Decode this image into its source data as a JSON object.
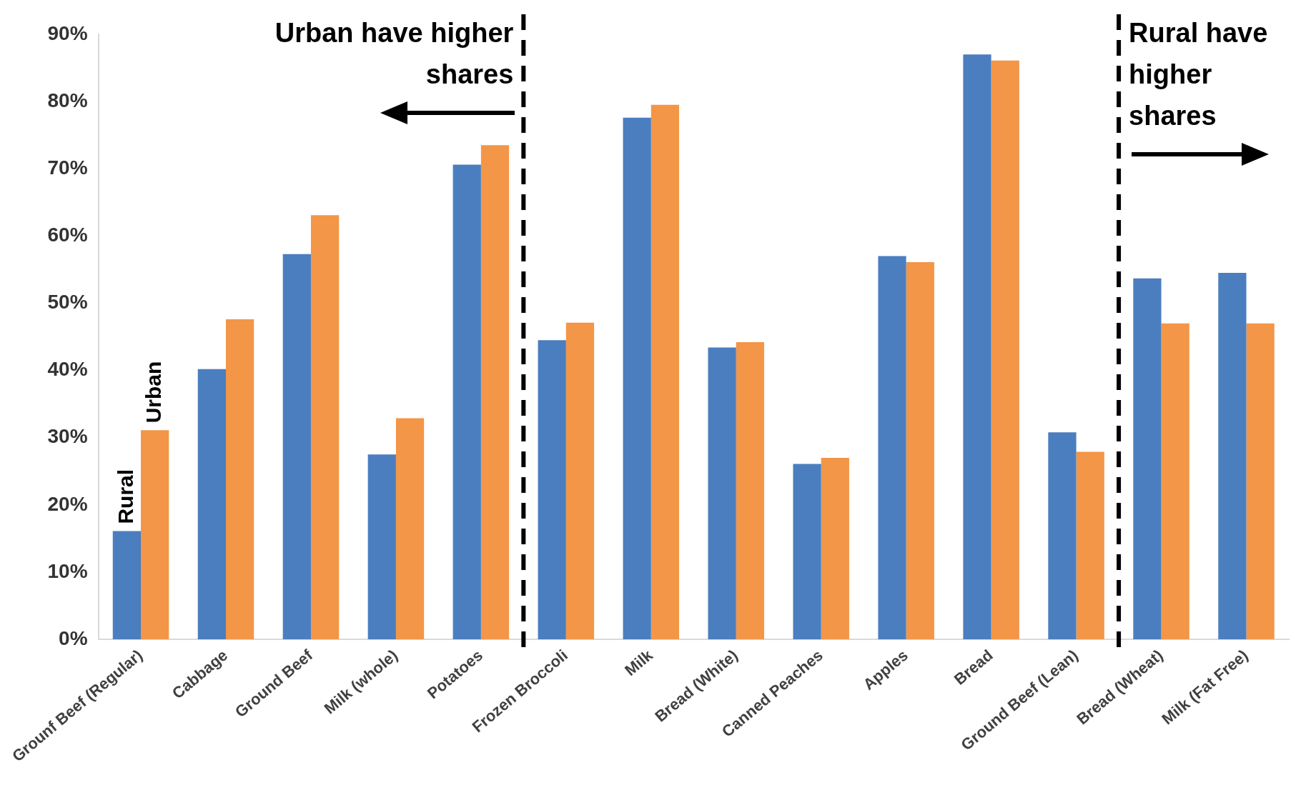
{
  "chart_data": {
    "type": "bar",
    "categories": [
      "Grounf Beef (Regular)",
      "Cabbage",
      "Ground Beef",
      "Milk (whole)",
      "Potatoes",
      "Frozen Broccoli",
      "Milk",
      "Bread (White)",
      "Canned Peaches",
      "Apples",
      "Bread",
      "Ground Beef (Lean)",
      "Bread (Wheat)",
      "Milk (Fat Free)"
    ],
    "series": [
      {
        "name": "Rural",
        "color": "#4a7ebf",
        "values": [
          16.1,
          40.2,
          57.3,
          27.5,
          70.6,
          44.5,
          77.6,
          43.4,
          26.1,
          57.0,
          87.0,
          30.8,
          53.7,
          54.5
        ]
      },
      {
        "name": "Urban",
        "color": "#f39647",
        "values": [
          31.1,
          47.6,
          63.1,
          32.9,
          73.5,
          47.1,
          79.5,
          44.2,
          27.0,
          56.1,
          86.1,
          27.9,
          47.0,
          47.0
        ]
      }
    ],
    "ylim": [
      0,
      90
    ],
    "yticks": [
      {
        "value": 0,
        "label": "0%"
      },
      {
        "value": 10,
        "label": "10%"
      },
      {
        "value": 20,
        "label": "20%"
      },
      {
        "value": 30,
        "label": "30%"
      },
      {
        "value": 40,
        "label": "40%"
      },
      {
        "value": 50,
        "label": "50%"
      },
      {
        "value": 60,
        "label": "60%"
      },
      {
        "value": 70,
        "label": "70%"
      },
      {
        "value": 80,
        "label": "80%"
      },
      {
        "value": 90,
        "label": "90%"
      }
    ],
    "grid": false,
    "legend": false,
    "annotations": [
      "Urban have higher shares",
      "Rural have higher shares"
    ]
  }
}
